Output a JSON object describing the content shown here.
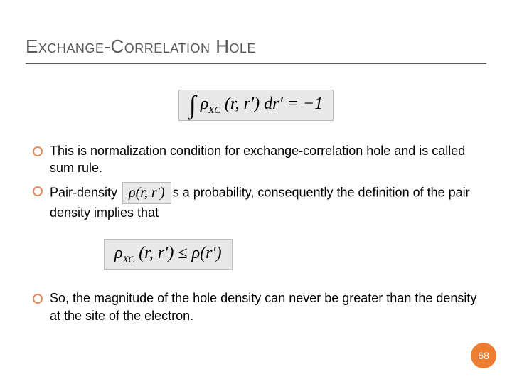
{
  "title": "Exchange-Correlation Hole",
  "equation1": {
    "html": "<span class='integral'>∫</span> ρ<sub>XC</sub> (r, r′) dr′ = −1",
    "background": "#e8e8e8",
    "border": "#bbbbbb",
    "font": "Times New Roman",
    "fontsize": 24
  },
  "bullets": [
    {
      "text": "This is normalization condition for exchange-correlation hole and is called sum rule."
    },
    {
      "prefix": "Pair-density ",
      "inline_eq": "ρ(r, r′)",
      "suffix": "s a probability, consequently the definition of the pair density implies that"
    }
  ],
  "equation2": {
    "html": "ρ<sub>XC</sub> (r, r′) ≤ ρ(r′)",
    "background": "#e8e8e8",
    "border": "#bbbbbb",
    "font": "Times New Roman",
    "fontsize": 24
  },
  "bullets2": [
    {
      "text": "So, the magnitude of the hole density can never be greater than the density at the site of the electron."
    }
  ],
  "page_number": "68",
  "colors": {
    "title_text": "#595959",
    "bullet_ring": "#e88b5c",
    "page_badge": "#ed7d31",
    "text": "#000000",
    "background": "#ffffff"
  },
  "typography": {
    "title_fontsize": 26,
    "body_fontsize": 18,
    "page_fontsize": 14
  }
}
